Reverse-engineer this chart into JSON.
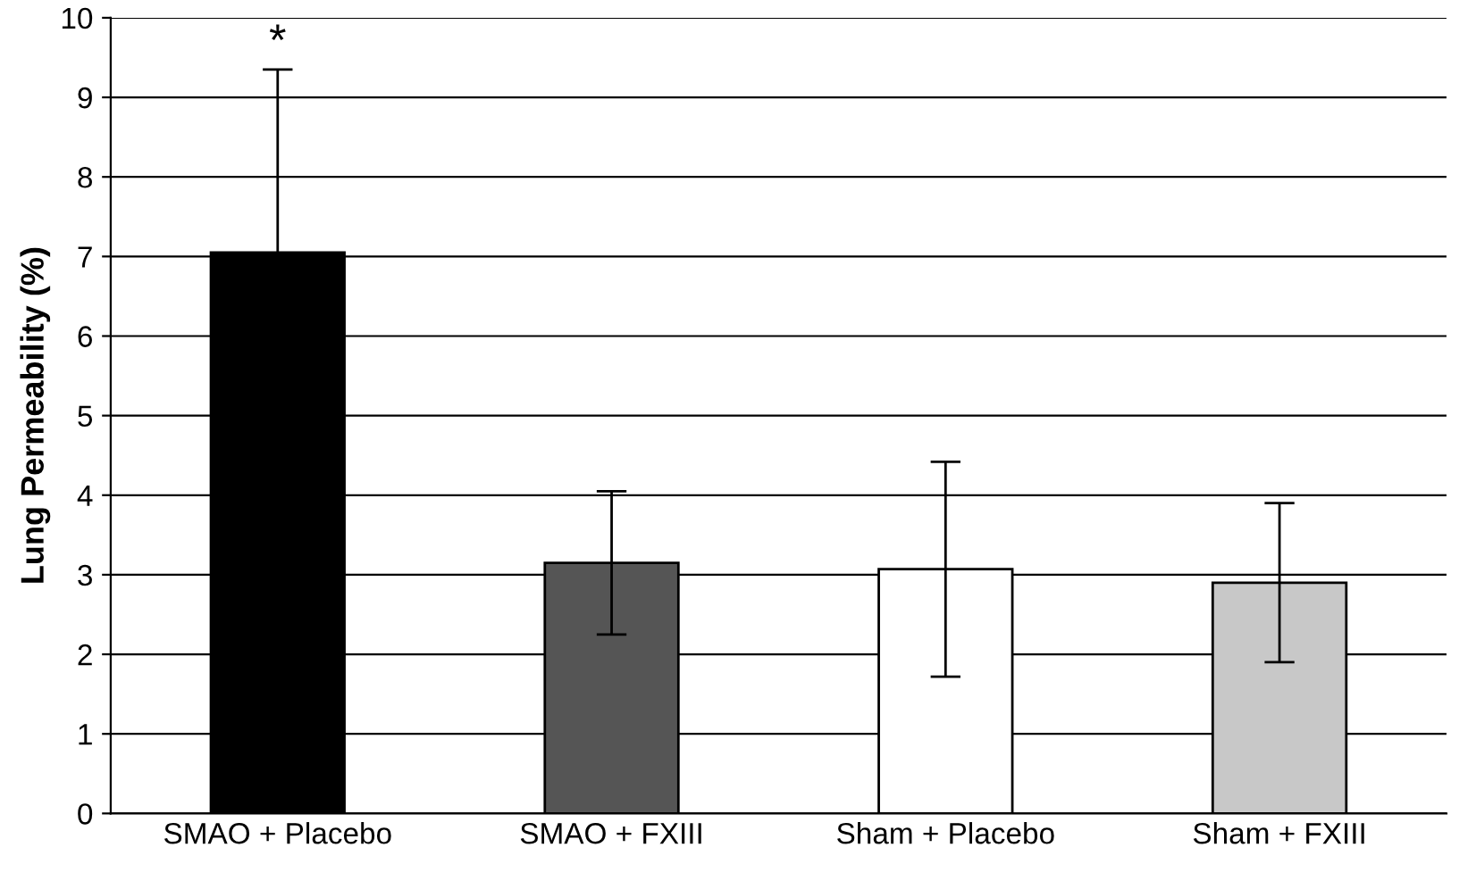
{
  "chart_data": {
    "type": "bar",
    "ylabel": "Lung Permeability (%)",
    "categories": [
      "SMAO + Placebo",
      "SMAO + FXIII",
      "Sham + Placebo",
      "Sham + FXIII"
    ],
    "values": [
      7.05,
      3.15,
      3.07,
      2.9
    ],
    "errors": [
      2.3,
      0.9,
      1.35,
      1.0
    ],
    "colors": [
      "#000000",
      "#555555",
      "#ffffff",
      "#c8c8c8"
    ],
    "ylim": [
      0,
      10
    ],
    "yticks": [
      0,
      1,
      2,
      3,
      4,
      5,
      6,
      7,
      8,
      9,
      10
    ],
    "grid": "y",
    "annotations": [
      {
        "text": "*",
        "x": "SMAO + Placebo",
        "y": 9.35
      }
    ]
  }
}
